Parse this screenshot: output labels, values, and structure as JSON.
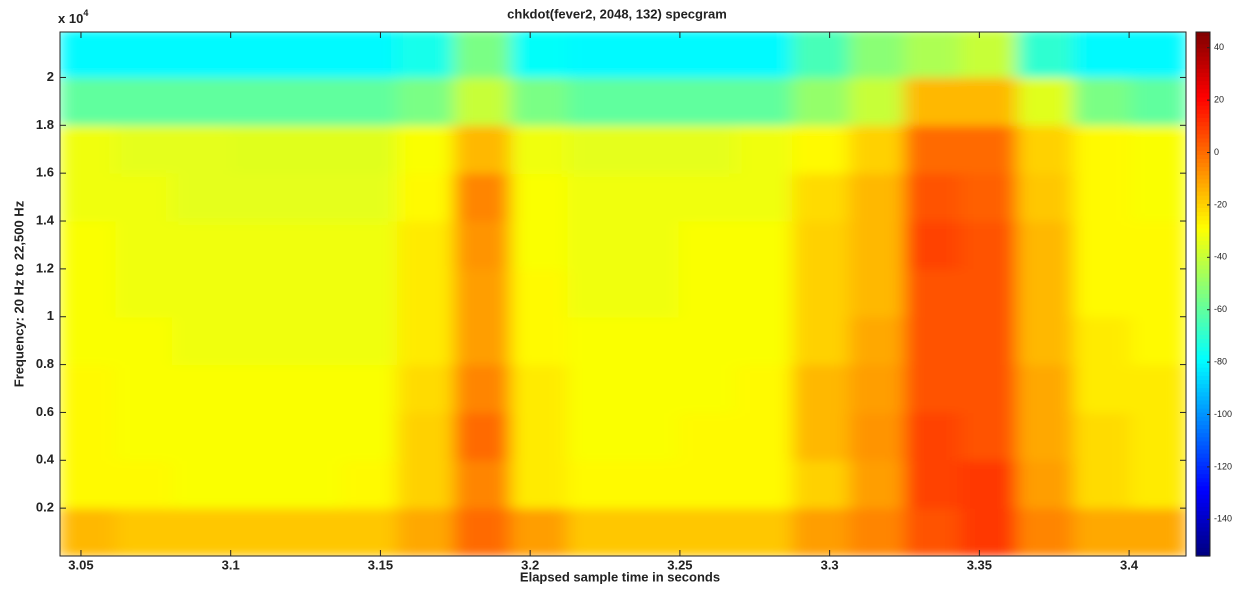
{
  "chart_data": {
    "type": "heatmap",
    "title": "chkdot(fever2, 2048, 132) specgram",
    "x_label": "Elapsed sample time in seconds",
    "y_label": "Frequency: 20 Hz to 22,500 Hz",
    "y_multiplier": {
      "base": "x 10",
      "exponent": "4"
    },
    "x": [
      3.052,
      3.071,
      3.09,
      3.109,
      3.128,
      3.146,
      3.165,
      3.184,
      3.203,
      3.222,
      3.24,
      3.259,
      3.278,
      3.297,
      3.316,
      3.334,
      3.353,
      3.372,
      3.391,
      3.41
    ],
    "y": [
      0.1,
      0.3,
      0.5,
      0.7,
      0.9,
      1.1,
      1.3,
      1.5,
      1.7,
      1.9,
      2.1
    ],
    "z": [
      [
        -15,
        -18,
        -18,
        -18,
        -18,
        -18,
        -12,
        0,
        -10,
        -18,
        -18,
        -18,
        -18,
        -10,
        -5,
        5,
        10,
        -5,
        -12,
        -12
      ],
      [
        -28,
        -28,
        -30,
        -30,
        -30,
        -28,
        -20,
        -5,
        -25,
        -28,
        -28,
        -28,
        -28,
        -20,
        -10,
        8,
        10,
        -10,
        -22,
        -25
      ],
      [
        -28,
        -30,
        -30,
        -30,
        -30,
        -30,
        -20,
        0,
        -25,
        -30,
        -30,
        -28,
        -28,
        -15,
        -8,
        8,
        5,
        -12,
        -22,
        -25
      ],
      [
        -28,
        -30,
        -30,
        -30,
        -30,
        -30,
        -22,
        -5,
        -25,
        -30,
        -30,
        -30,
        -28,
        -15,
        -10,
        5,
        5,
        -12,
        -25,
        -25
      ],
      [
        -30,
        -30,
        -32,
        -32,
        -32,
        -32,
        -25,
        -10,
        -28,
        -30,
        -30,
        -30,
        -30,
        -20,
        -12,
        5,
        5,
        -15,
        -25,
        -28
      ],
      [
        -30,
        -32,
        -32,
        -32,
        -32,
        -32,
        -25,
        -10,
        -28,
        -32,
        -32,
        -30,
        -30,
        -20,
        -15,
        5,
        5,
        -15,
        -28,
        -28
      ],
      [
        -30,
        -32,
        -32,
        -32,
        -32,
        -32,
        -25,
        -8,
        -30,
        -32,
        -32,
        -30,
        -30,
        -20,
        -15,
        8,
        5,
        -15,
        -28,
        -28
      ],
      [
        -32,
        -32,
        -34,
        -34,
        -34,
        -34,
        -28,
        -5,
        -30,
        -32,
        -32,
        -32,
        -32,
        -22,
        -15,
        5,
        2,
        -18,
        -28,
        -30
      ],
      [
        -32,
        -34,
        -34,
        -35,
        -35,
        -35,
        -30,
        -15,
        -32,
        -34,
        -34,
        -34,
        -32,
        -28,
        -20,
        0,
        0,
        -20,
        -28,
        -30
      ],
      [
        -60,
        -60,
        -60,
        -60,
        -60,
        -60,
        -55,
        -40,
        -55,
        -60,
        -60,
        -60,
        -60,
        -50,
        -40,
        -15,
        -15,
        -35,
        -55,
        -60
      ],
      [
        -80,
        -80,
        -80,
        -80,
        -80,
        -80,
        -75,
        -55,
        -78,
        -80,
        -80,
        -80,
        -80,
        -65,
        -52,
        -45,
        -40,
        -70,
        -80,
        -80
      ]
    ],
    "colormap": "jet",
    "clim": [
      -154,
      46
    ],
    "cticks": [
      40,
      20,
      0,
      -20,
      -40,
      -60,
      -80,
      -100,
      -120,
      -140
    ],
    "xlim": [
      3.043,
      3.419
    ],
    "ylim": [
      0,
      2.19
    ],
    "xticks": [
      3.05,
      3.1,
      3.15,
      3.2,
      3.25,
      3.3,
      3.35,
      3.4
    ],
    "yticks": [
      0.2,
      0.4,
      0.6,
      0.8,
      1,
      1.2,
      1.4,
      1.6,
      1.8,
      2
    ]
  }
}
